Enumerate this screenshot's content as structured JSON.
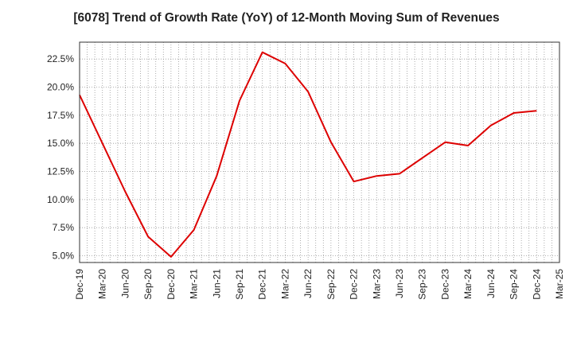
{
  "chart_data": {
    "type": "line",
    "title": "[6078]  Trend of Growth Rate (YoY) of 12-Month Moving Sum of Revenues",
    "xlabel": "",
    "ylabel": "",
    "ylim": [
      4.4,
      24.0
    ],
    "y_ticks": [
      5.0,
      7.5,
      10.0,
      12.5,
      15.0,
      17.5,
      20.0,
      22.5
    ],
    "y_tick_labels": [
      "5.0%",
      "7.5%",
      "10.0%",
      "12.5%",
      "15.0%",
      "17.5%",
      "20.0%",
      "22.5%"
    ],
    "x_tick_labels": [
      "Dec-19",
      "Mar-20",
      "Jun-20",
      "Sep-20",
      "Dec-20",
      "Mar-21",
      "Jun-21",
      "Sep-21",
      "Dec-21",
      "Mar-22",
      "Jun-22",
      "Sep-22",
      "Dec-22",
      "Mar-23",
      "Jun-23",
      "Sep-23",
      "Dec-23",
      "Mar-24",
      "Jun-24",
      "Sep-24",
      "Dec-24",
      "Mar-25"
    ],
    "grid": true,
    "series": [
      {
        "color": "#dd0000",
        "x": [
          "Dec-19",
          "Mar-20",
          "Jun-20",
          "Sep-20",
          "Dec-20",
          "Mar-21",
          "Jun-21",
          "Sep-21",
          "Dec-21",
          "Mar-22",
          "Jun-22",
          "Sep-22",
          "Dec-22",
          "Mar-23",
          "Jun-23",
          "Sep-23",
          "Dec-23",
          "Mar-24",
          "Jun-24",
          "Sep-24",
          "Dec-24"
        ],
        "values": [
          19.3,
          15.0,
          10.7,
          6.7,
          4.9,
          7.3,
          12.1,
          18.8,
          23.1,
          22.1,
          19.6,
          15.1,
          11.6,
          12.1,
          12.3,
          13.7,
          15.1,
          14.8,
          16.6,
          17.7,
          17.9
        ]
      }
    ]
  }
}
